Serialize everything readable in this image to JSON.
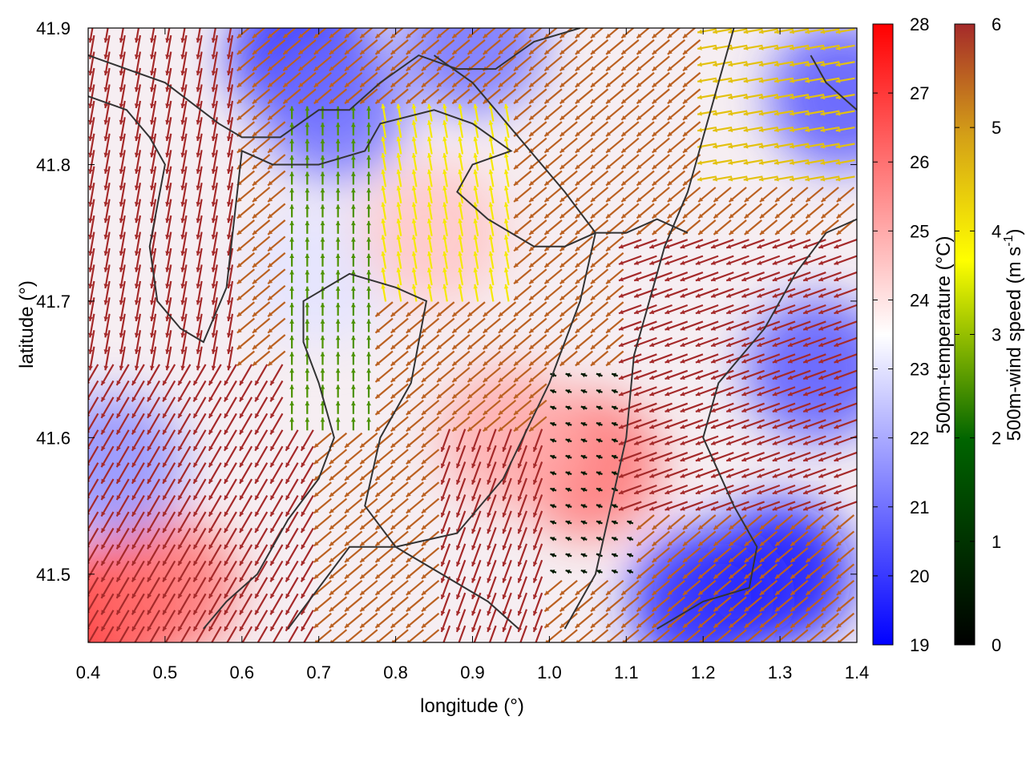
{
  "chart_data": {
    "type": "heatmap",
    "xlabel": "longitude (°)",
    "ylabel": "latitude (°)",
    "xlim": [
      0.4,
      1.4
    ],
    "ylim": [
      41.45,
      41.9
    ],
    "x_ticks": [
      "0.4",
      "0.5",
      "0.6",
      "0.7",
      "0.8",
      "0.9",
      "1.0",
      "1.1",
      "1.2",
      "1.3",
      "1.4"
    ],
    "y_ticks": [
      "41.5",
      "41.6",
      "41.7",
      "41.8",
      "41.9"
    ],
    "grid": false,
    "temperature_colorbar": {
      "label": "500m-temperature (°C)",
      "range": [
        19,
        28
      ],
      "ticks": [
        "19",
        "20",
        "21",
        "22",
        "23",
        "24",
        "25",
        "26",
        "27",
        "28"
      ],
      "colors": {
        "low": "#0000ff",
        "mid": "#ffffff",
        "high": "#ff0000"
      }
    },
    "wind_colorbar": {
      "label": "500m-wind speed (m s",
      "label_sup": "-1",
      "label_end": ")",
      "range": [
        0,
        6
      ],
      "ticks": [
        "0",
        "1",
        "2",
        "3",
        "4",
        "5",
        "6"
      ],
      "colors": [
        "#000000",
        "#006400",
        "#ffff00",
        "#d4a017",
        "#a52a2a"
      ]
    },
    "temperature_field": [
      {
        "lon": 0.42,
        "lat": 41.47,
        "t": 27.5
      },
      {
        "lon": 0.5,
        "lat": 41.49,
        "t": 26.0
      },
      {
        "lon": 0.43,
        "lat": 41.58,
        "t": 21.5
      },
      {
        "lon": 0.68,
        "lat": 41.88,
        "t": 19.5
      },
      {
        "lon": 0.72,
        "lat": 41.84,
        "t": 21.0
      },
      {
        "lon": 0.9,
        "lat": 41.89,
        "t": 21.0
      },
      {
        "lon": 0.7,
        "lat": 41.72,
        "t": 23.0
      },
      {
        "lon": 1.05,
        "lat": 41.58,
        "t": 26.0
      },
      {
        "lon": 0.95,
        "lat": 41.6,
        "t": 25.0
      },
      {
        "lon": 1.38,
        "lat": 41.85,
        "t": 20.5
      },
      {
        "lon": 1.3,
        "lat": 41.5,
        "t": 19.3
      },
      {
        "lon": 1.2,
        "lat": 41.48,
        "t": 19.6
      },
      {
        "lon": 1.35,
        "lat": 41.65,
        "t": 20.5
      },
      {
        "lon": 0.85,
        "lat": 41.75,
        "t": 24.5
      }
    ],
    "wind_field": {
      "description_units": "m s-1",
      "regions": [
        {
          "lon": [
            0.4,
            0.7
          ],
          "lat": [
            41.45,
            41.65
          ],
          "speed": 6,
          "direction_deg": 120
        },
        {
          "lon": [
            0.4,
            0.6
          ],
          "lat": [
            41.65,
            41.9
          ],
          "speed": 6,
          "direction_deg": 100
        },
        {
          "lon": [
            0.65,
            0.78
          ],
          "lat": [
            41.6,
            41.85
          ],
          "speed": 2.5,
          "direction_deg": 270
        },
        {
          "lon": [
            0.78,
            0.95
          ],
          "lat": [
            41.7,
            41.85
          ],
          "speed": 4,
          "direction_deg": 260
        },
        {
          "lon": [
            1.0,
            1.12
          ],
          "lat": [
            41.5,
            41.65
          ],
          "speed": 0.5,
          "direction_deg": 200
        },
        {
          "lon": [
            1.1,
            1.4
          ],
          "lat": [
            41.55,
            41.75
          ],
          "speed": 6,
          "direction_deg": 160
        },
        {
          "lon": [
            1.2,
            1.4
          ],
          "lat": [
            41.78,
            41.9
          ],
          "speed": 4.5,
          "direction_deg": 170
        },
        {
          "lon": [
            0.85,
            1.0
          ],
          "lat": [
            41.45,
            41.6
          ],
          "speed": 6,
          "direction_deg": 110
        }
      ]
    },
    "contours": [
      [
        [
          0.4,
          41.88
        ],
        [
          0.45,
          41.87
        ],
        [
          0.5,
          41.86
        ],
        [
          0.57,
          41.83
        ],
        [
          0.6,
          41.82
        ],
        [
          0.65,
          41.82
        ],
        [
          0.7,
          41.84
        ],
        [
          0.74,
          41.84
        ],
        [
          0.78,
          41.86
        ],
        [
          0.83,
          41.88
        ],
        [
          0.88,
          41.87
        ],
        [
          0.93,
          41.87
        ],
        [
          0.98,
          41.89
        ],
        [
          1.04,
          41.9
        ]
      ],
      [
        [
          0.4,
          41.85
        ],
        [
          0.45,
          41.84
        ],
        [
          0.48,
          41.82
        ],
        [
          0.5,
          41.8
        ],
        [
          0.49,
          41.77
        ],
        [
          0.48,
          41.74
        ],
        [
          0.49,
          41.7
        ],
        [
          0.52,
          41.68
        ],
        [
          0.55,
          41.67
        ],
        [
          0.58,
          41.71
        ],
        [
          0.59,
          41.76
        ],
        [
          0.6,
          41.81
        ],
        [
          0.64,
          41.8
        ],
        [
          0.7,
          41.8
        ],
        [
          0.76,
          41.81
        ],
        [
          0.78,
          41.83
        ],
        [
          0.85,
          41.84
        ],
        [
          0.9,
          41.83
        ],
        [
          0.95,
          41.81
        ],
        [
          0.9,
          41.8
        ],
        [
          0.88,
          41.78
        ],
        [
          0.92,
          41.76
        ],
        [
          0.98,
          41.74
        ],
        [
          1.02,
          41.74
        ],
        [
          1.06,
          41.75
        ],
        [
          1.1,
          41.75
        ],
        [
          1.14,
          41.76
        ],
        [
          1.18,
          41.75
        ]
      ],
      [
        [
          0.55,
          41.46
        ],
        [
          0.58,
          41.48
        ],
        [
          0.62,
          41.5
        ],
        [
          0.66,
          41.54
        ],
        [
          0.7,
          41.57
        ],
        [
          0.72,
          41.6
        ],
        [
          0.7,
          41.64
        ],
        [
          0.68,
          41.67
        ],
        [
          0.68,
          41.7
        ],
        [
          0.74,
          41.72
        ],
        [
          0.8,
          41.71
        ],
        [
          0.84,
          41.7
        ],
        [
          0.82,
          41.64
        ],
        [
          0.78,
          41.6
        ],
        [
          0.76,
          41.55
        ],
        [
          0.8,
          41.52
        ],
        [
          0.86,
          41.5
        ],
        [
          0.92,
          41.48
        ],
        [
          0.96,
          41.46
        ]
      ],
      [
        [
          0.66,
          41.46
        ],
        [
          0.7,
          41.49
        ],
        [
          0.74,
          41.52
        ],
        [
          0.8,
          41.52
        ],
        [
          0.88,
          41.53
        ],
        [
          0.94,
          41.57
        ],
        [
          1.0,
          41.64
        ],
        [
          1.04,
          41.7
        ],
        [
          1.06,
          41.75
        ],
        [
          1.02,
          41.78
        ],
        [
          0.96,
          41.82
        ],
        [
          0.9,
          41.86
        ],
        [
          0.85,
          41.88
        ]
      ],
      [
        [
          1.02,
          41.46
        ],
        [
          1.06,
          41.5
        ],
        [
          1.08,
          41.55
        ],
        [
          1.1,
          41.6
        ],
        [
          1.11,
          41.66
        ],
        [
          1.13,
          41.7
        ],
        [
          1.15,
          41.74
        ],
        [
          1.18,
          41.78
        ],
        [
          1.2,
          41.82
        ],
        [
          1.22,
          41.86
        ],
        [
          1.24,
          41.9
        ]
      ],
      [
        [
          1.14,
          41.46
        ],
        [
          1.2,
          41.48
        ],
        [
          1.26,
          41.49
        ],
        [
          1.27,
          41.52
        ],
        [
          1.24,
          41.55
        ],
        [
          1.2,
          41.6
        ],
        [
          1.22,
          41.64
        ],
        [
          1.28,
          41.68
        ],
        [
          1.32,
          41.72
        ],
        [
          1.36,
          41.75
        ],
        [
          1.4,
          41.76
        ]
      ],
      [
        [
          1.34,
          41.88
        ],
        [
          1.36,
          41.86
        ],
        [
          1.4,
          41.84
        ]
      ]
    ]
  }
}
